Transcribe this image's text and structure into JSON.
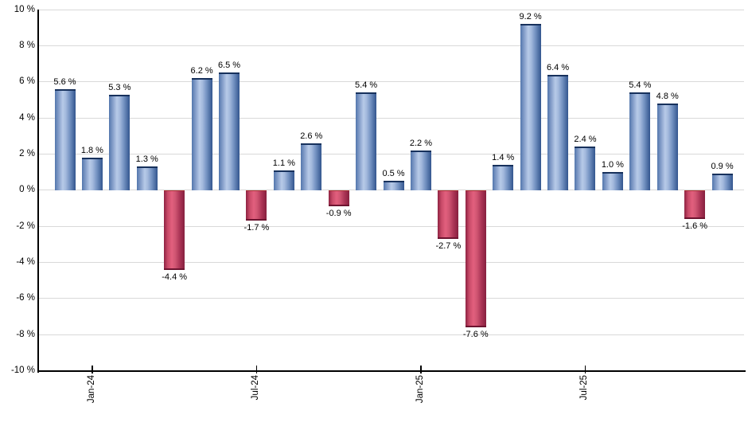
{
  "figure": {
    "background": "#ffffff",
    "title": ""
  },
  "chart_data": {
    "type": "bar",
    "title": "",
    "xlabel": "",
    "ylabel": "",
    "ylim": [
      -10,
      10
    ],
    "grid": "horizontal",
    "legend": "none",
    "values": [
      5.6,
      1.8,
      5.3,
      1.3,
      -4.4,
      6.2,
      6.5,
      -1.7,
      1.1,
      2.6,
      -0.9,
      5.4,
      0.5,
      2.2,
      -2.7,
      -7.6,
      1.4,
      9.2,
      6.4,
      2.4,
      1.0,
      5.4,
      4.8,
      -1.6,
      0.9
    ],
    "value_labels": [
      "5.6 %",
      "1.8 %",
      "5.3 %",
      "1.3 %",
      "-4.4 %",
      "6.2 %",
      "6.5 %",
      "-1.7 %",
      "1.1 %",
      "2.6 %",
      "-0.9 %",
      "5.4 %",
      "0.5 %",
      "2.2 %",
      "-2.7 %",
      "-7.6 %",
      "1.4 %",
      "9.2 %",
      "6.4 %",
      "2.4 %",
      "1.0 %",
      "5.4 %",
      "4.8 %",
      "-1.6 %",
      "0.9 %"
    ],
    "y_ticks": [
      {
        "value": 10,
        "label": "10 %"
      },
      {
        "value": 8,
        "label": "8 %"
      },
      {
        "value": 6,
        "label": "6 %"
      },
      {
        "value": 4,
        "label": "4 %"
      },
      {
        "value": 2,
        "label": "2 %"
      },
      {
        "value": 0,
        "label": "0 %"
      },
      {
        "value": -2,
        "label": "-2 %"
      },
      {
        "value": -4,
        "label": "-4 %"
      },
      {
        "value": -6,
        "label": "-6 %"
      },
      {
        "value": -8,
        "label": "-8 %"
      },
      {
        "value": -10,
        "label": "-10 %"
      }
    ],
    "x_ticks": [
      {
        "bar_index": 1,
        "label": "Jan-24"
      },
      {
        "bar_index": 7,
        "label": "Jul-24"
      },
      {
        "bar_index": 13,
        "label": "Jan-25"
      },
      {
        "bar_index": 19,
        "label": "Jul-25"
      }
    ],
    "colors": {
      "positive_fill": "#b7cae8",
      "positive_shade": "#5377ad",
      "positive_dark": "#33568e",
      "positive_cap": "#17315c",
      "negative_fill": "#e2607e",
      "negative_shade": "#8e2242",
      "negative_dark": "#86203f",
      "negative_cap": "#6d1430",
      "grid": "#d9d9d9",
      "axis": "#000000",
      "text": "#000000"
    }
  }
}
